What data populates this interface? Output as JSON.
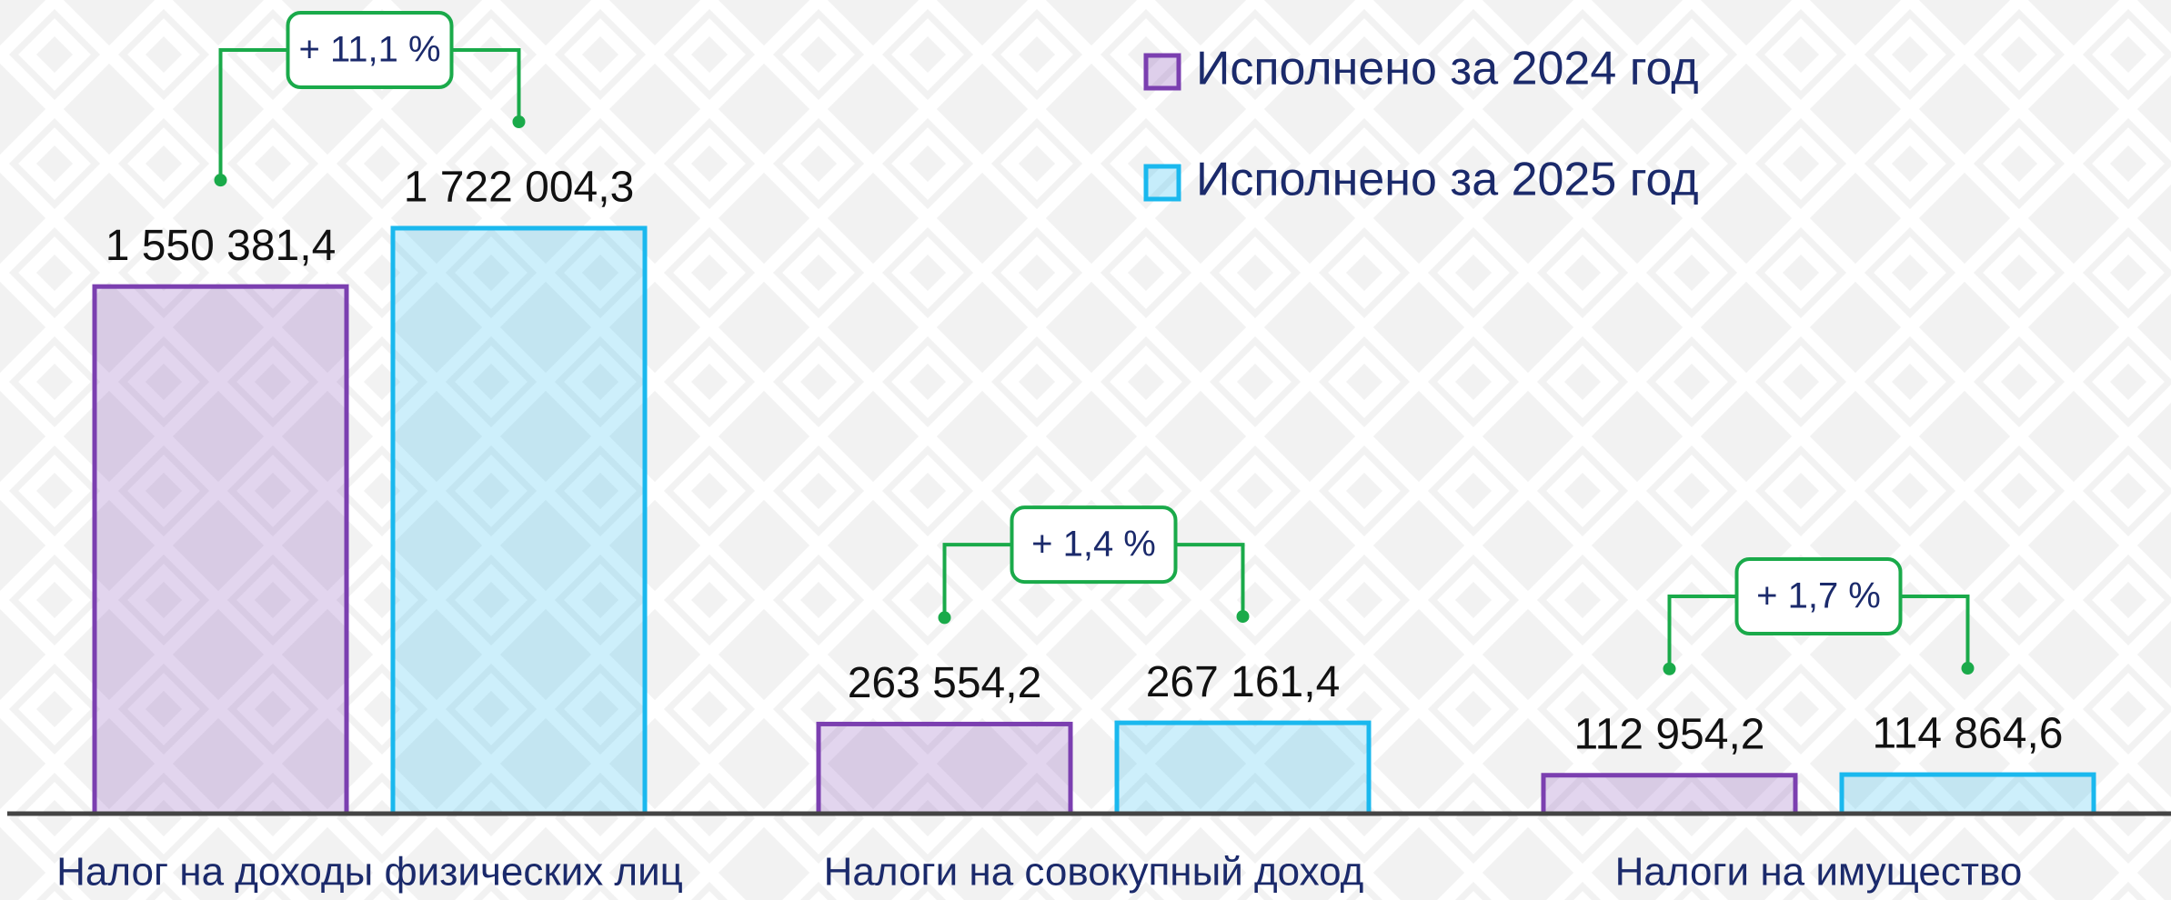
{
  "chart_data": {
    "type": "bar",
    "categories": [
      "Налог на доходы физических лиц",
      "Налоги на совокупный доход",
      "Налоги на имущество"
    ],
    "series": [
      {
        "name": "Исполнено за 2024 год",
        "color": "#7b3fb0",
        "values": [
          1550381.4,
          263554.2,
          112954.2
        ],
        "value_labels": [
          "1 550 381,4",
          "263 554,2",
          "112 954,2"
        ]
      },
      {
        "name": "Исполнено за 2025 год",
        "color": "#1ab8ee",
        "values": [
          1722004.3,
          267161.4,
          114864.6
        ],
        "value_labels": [
          "1 722 004,3",
          "267 161,4",
          "114 864,6"
        ]
      }
    ],
    "annotations": [
      "+ 11,1 %",
      "+ 1,4 %",
      "+ 1,7 %"
    ]
  }
}
